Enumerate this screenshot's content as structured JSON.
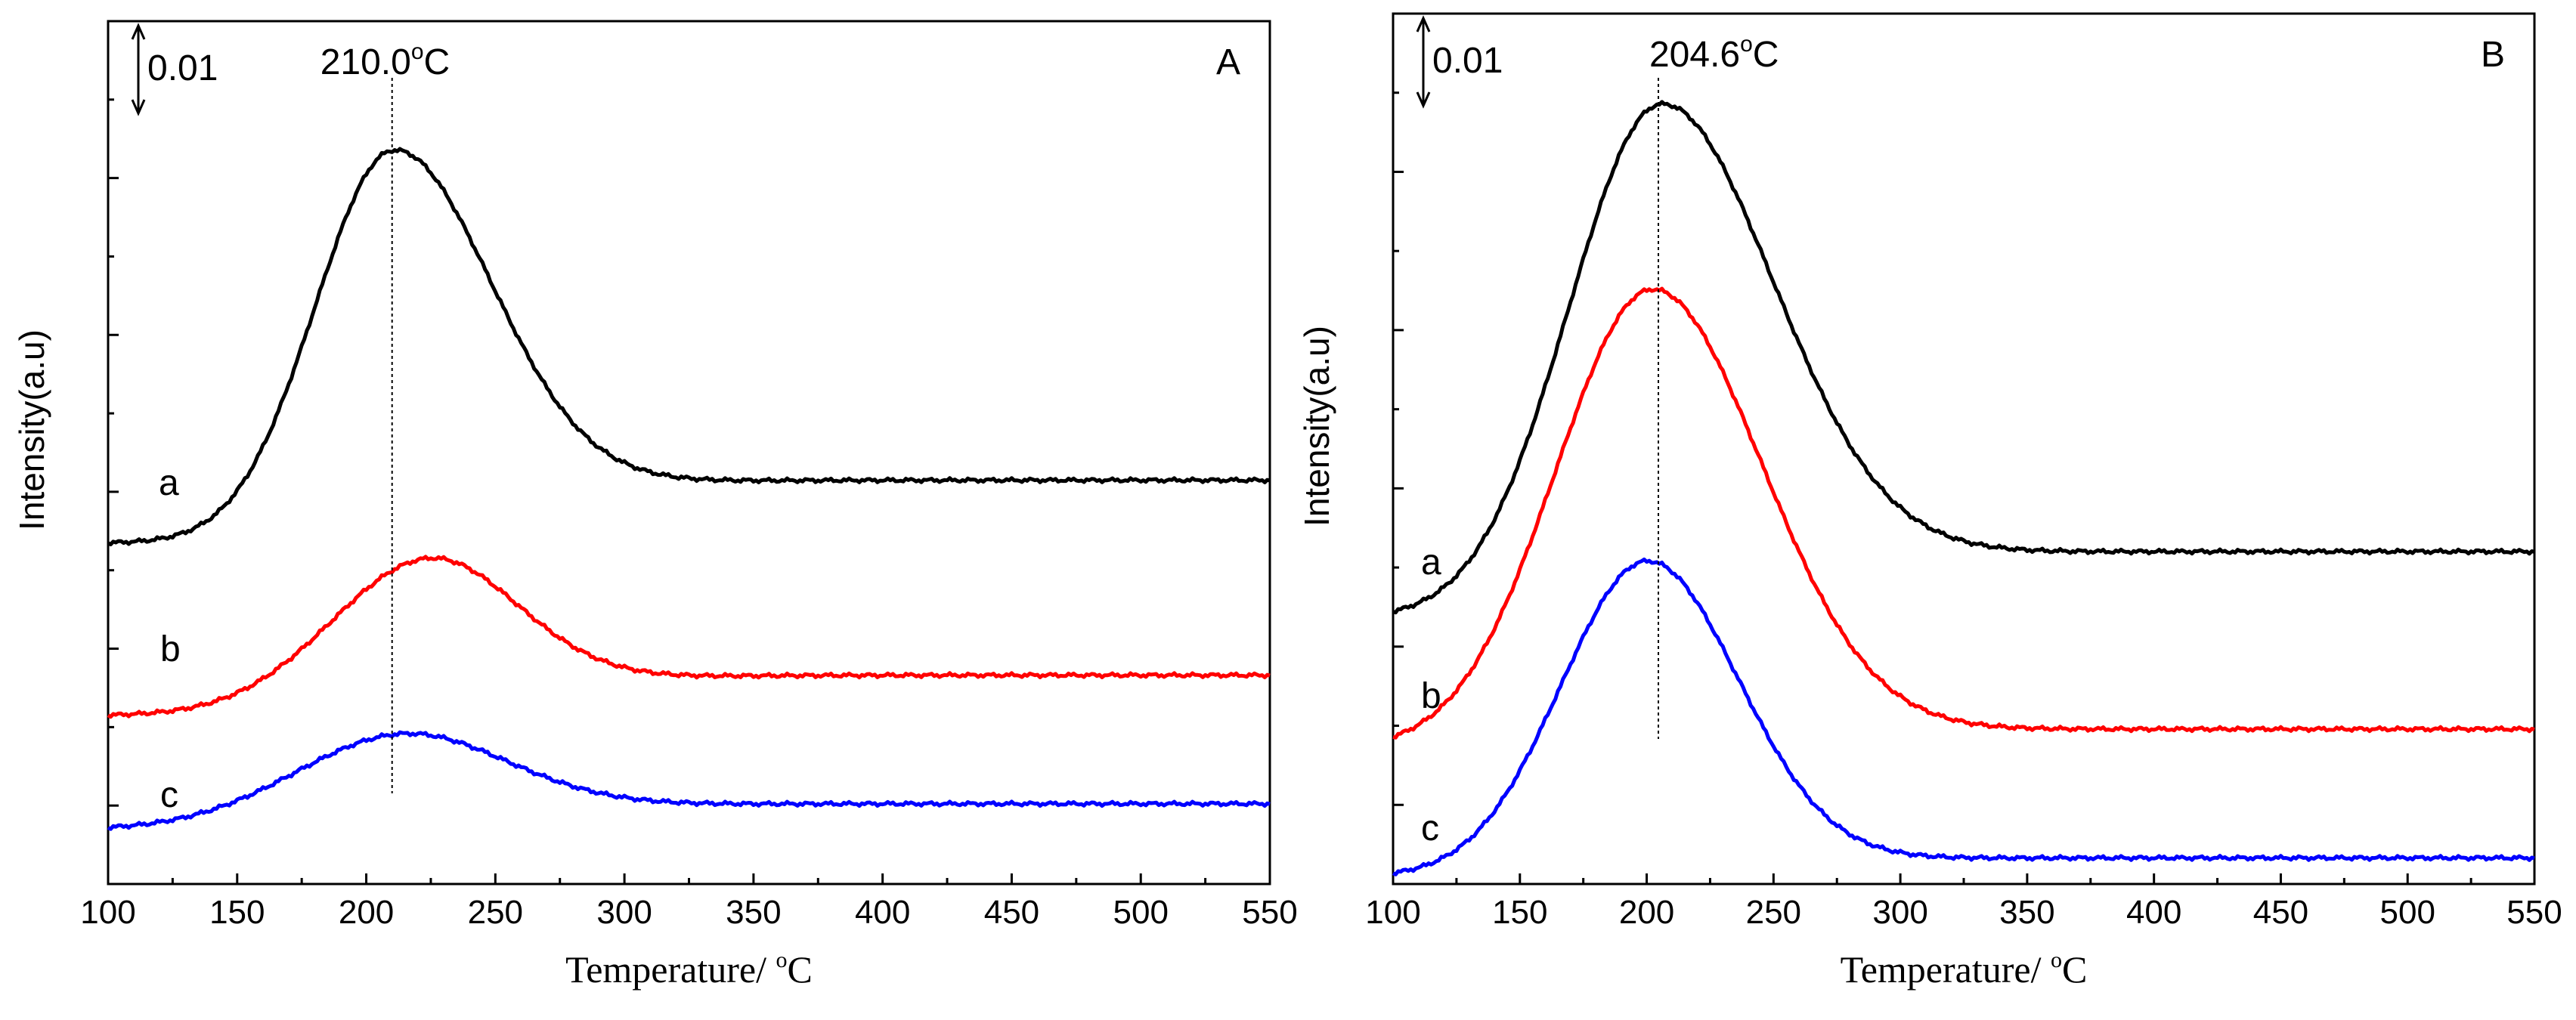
{
  "chart_data": [
    {
      "type": "line",
      "panel_label": "A",
      "xlabel": "Temperature/ ",
      "xlabel_unit": "C",
      "xlabel_sup": "o",
      "ylabel": "Intensity(a.u)",
      "xlim": [
        100,
        550
      ],
      "ylim": [
        0,
        1
      ],
      "xticks": [
        "100",
        "150",
        "200",
        "250",
        "300",
        "350",
        "400",
        "450",
        "500",
        "550"
      ],
      "scale_bar_label": "0.01",
      "peak_temperature": 210.0,
      "peak_label": "210.0",
      "peak_label_sup": "o",
      "peak_label_unit": "C",
      "series": [
        {
          "name": "a",
          "color": "#000000",
          "base_start": 0.395,
          "base_end": 0.468,
          "amplitude": 0.445,
          "center": 210,
          "sigma_left": 30,
          "sigma_right": 38
        },
        {
          "name": "b",
          "color": "#ff0000",
          "base_start": 0.195,
          "base_end": 0.242,
          "amplitude": 0.176,
          "center": 224,
          "sigma_left": 38,
          "sigma_right": 35
        },
        {
          "name": "c",
          "color": "#0000ff",
          "base_start": 0.063,
          "base_end": 0.093,
          "amplitude": 0.107,
          "center": 214,
          "sigma_left": 42,
          "sigma_right": 40
        }
      ]
    },
    {
      "type": "line",
      "panel_label": "B",
      "xlabel": "Temperature/ ",
      "xlabel_unit": "C",
      "xlabel_sup": "o",
      "ylabel": "Intensity(a.u)",
      "xlim": [
        100,
        550
      ],
      "ylim": [
        0,
        1
      ],
      "xticks": [
        "100",
        "150",
        "200",
        "250",
        "300",
        "350",
        "400",
        "450",
        "500",
        "550"
      ],
      "scale_bar_label": "0.01",
      "peak_temperature": 204.6,
      "peak_label": "204.6",
      "peak_label_sup": "o",
      "peak_label_unit": "C",
      "series": [
        {
          "name": "a",
          "color": "#000000",
          "base_start": 0.305,
          "base_end": 0.382,
          "amplitude": 0.58,
          "center": 205,
          "sigma_left": 36,
          "sigma_right": 44
        },
        {
          "name": "b",
          "color": "#ff0000",
          "base_start": 0.155,
          "base_end": 0.178,
          "amplitude": 0.525,
          "center": 202,
          "sigma_left": 38,
          "sigma_right": 43
        },
        {
          "name": "c",
          "color": "#0000ff",
          "base_start": 0.008,
          "base_end": 0.03,
          "amplitude": 0.36,
          "center": 200,
          "sigma_left": 34,
          "sigma_right": 36
        }
      ]
    }
  ]
}
